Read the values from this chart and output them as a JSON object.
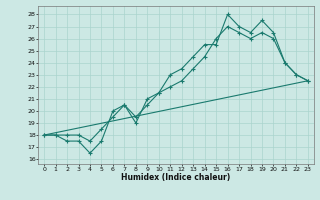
{
  "xlabel": "Humidex (Indice chaleur)",
  "bg_color": "#cce8e4",
  "line_color": "#1a7a6e",
  "grid_color": "#aad4ce",
  "xlim": [
    -0.5,
    23.5
  ],
  "ylim": [
    15.6,
    28.7
  ],
  "yticks": [
    16,
    17,
    18,
    19,
    20,
    21,
    22,
    23,
    24,
    25,
    26,
    27,
    28
  ],
  "xticks": [
    0,
    1,
    2,
    3,
    4,
    5,
    6,
    7,
    8,
    9,
    10,
    11,
    12,
    13,
    14,
    15,
    16,
    17,
    18,
    19,
    20,
    21,
    22,
    23
  ],
  "line1_x": [
    0,
    1,
    2,
    3,
    4,
    5,
    6,
    7,
    8,
    9,
    10,
    11,
    12,
    13,
    14,
    15,
    16,
    17,
    18,
    19,
    20,
    21,
    22,
    23
  ],
  "line1_y": [
    18,
    18,
    17.5,
    17.5,
    16.5,
    17.5,
    20,
    20.5,
    19,
    21,
    21.5,
    23,
    23.5,
    24.5,
    25.5,
    25.5,
    28,
    27,
    26.5,
    27.5,
    26.5,
    24,
    23,
    22.5
  ],
  "line2_x": [
    0,
    1,
    2,
    3,
    4,
    5,
    6,
    7,
    8,
    9,
    10,
    11,
    12,
    13,
    14,
    15,
    16,
    17,
    18,
    19,
    20,
    21,
    22,
    23
  ],
  "line2_y": [
    18,
    18,
    18,
    18,
    17.5,
    18.5,
    19.5,
    20.5,
    19.5,
    20.5,
    21.5,
    22,
    22.5,
    23.5,
    24.5,
    26,
    27,
    26.5,
    26,
    26.5,
    26,
    24,
    23,
    22.5
  ],
  "line3_x": [
    0,
    23
  ],
  "line3_y": [
    18,
    22.5
  ]
}
